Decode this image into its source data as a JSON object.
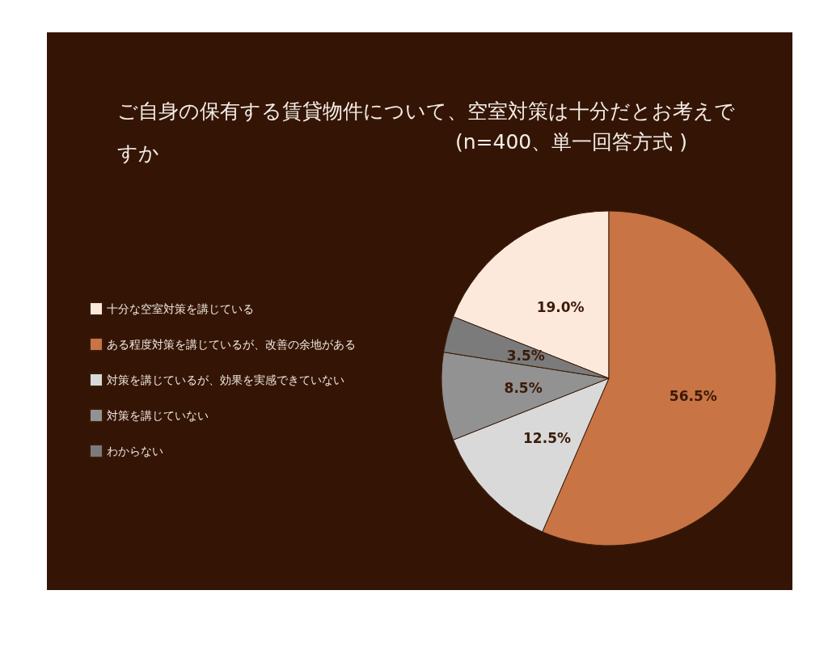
{
  "chart_data": {
    "type": "pie",
    "title": "ご自身の保有する賃貸物件について、空室対策は十分だとお考えですか",
    "subtitle": "(n=400、単一回答方式 )",
    "categories": [
      "十分な空室対策を講じている",
      "ある程度対策を講じているが、改善の余地がある",
      "対策を講じているが、効果を実感できていない",
      "対策を講じていない",
      "わからない"
    ],
    "values": [
      19.0,
      56.5,
      12.5,
      8.5,
      3.5
    ],
    "value_labels": [
      "19.0%",
      "56.5%",
      "12.5%",
      "8.5%",
      "3.5%"
    ],
    "colors": [
      "#fde9dc",
      "#c87444",
      "#d9d9d9",
      "#929292",
      "#7b7b7b"
    ],
    "legend": "left"
  }
}
